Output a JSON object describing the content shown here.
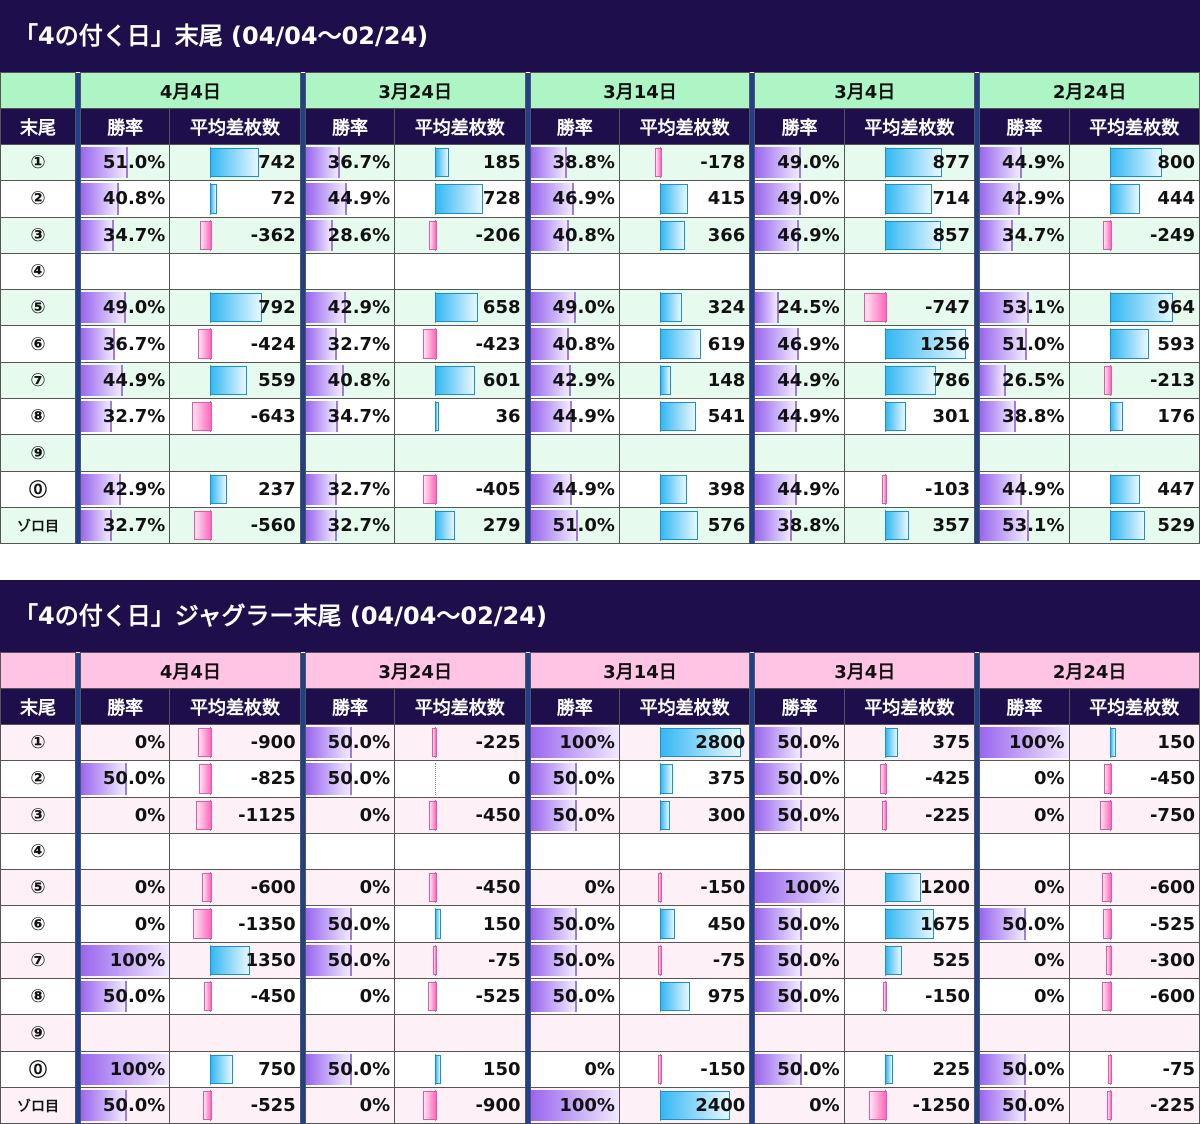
{
  "colors": {
    "title_bg": "#1e0f4c",
    "header_bg_1": "#aef5c6",
    "row_alt_1": "#e6fbee",
    "header_bg_2": "#ffc4e3",
    "row_alt_2": "#fdf0f7",
    "separator": "#1f3f8f",
    "positive_bar": "#33b8f2",
    "negative_bar": "#ff66bb",
    "rate_bar": "#9966ee"
  },
  "columns": {
    "label": "末尾",
    "rate": "勝率",
    "diff": "平均差枚数"
  },
  "sections": [
    {
      "title": "「4の付く日」末尾 (04/04〜02/24)",
      "theme": 1,
      "dates": [
        "4月4日",
        "3月24日",
        "3月14日",
        "3月4日",
        "2月24日"
      ],
      "rows": [
        {
          "label": "①",
          "cells": [
            [
              "51.0%",
              "742"
            ],
            [
              "36.7%",
              "185"
            ],
            [
              "38.8%",
              "-178"
            ],
            [
              "49.0%",
              "877"
            ],
            [
              "44.9%",
              "800"
            ]
          ]
        },
        {
          "label": "②",
          "cells": [
            [
              "40.8%",
              "72"
            ],
            [
              "44.9%",
              "728"
            ],
            [
              "46.9%",
              "415"
            ],
            [
              "49.0%",
              "714"
            ],
            [
              "42.9%",
              "444"
            ]
          ]
        },
        {
          "label": "③",
          "cells": [
            [
              "34.7%",
              "-362"
            ],
            [
              "28.6%",
              "-206"
            ],
            [
              "40.8%",
              "366"
            ],
            [
              "46.9%",
              "857"
            ],
            [
              "34.7%",
              "-249"
            ]
          ]
        },
        {
          "label": "④",
          "cells": [
            [
              "",
              ""
            ],
            [
              "",
              ""
            ],
            [
              "",
              ""
            ],
            [
              "",
              ""
            ],
            [
              "",
              ""
            ]
          ]
        },
        {
          "label": "⑤",
          "cells": [
            [
              "49.0%",
              "792"
            ],
            [
              "42.9%",
              "658"
            ],
            [
              "49.0%",
              "324"
            ],
            [
              "24.5%",
              "-747"
            ],
            [
              "53.1%",
              "964"
            ]
          ]
        },
        {
          "label": "⑥",
          "cells": [
            [
              "36.7%",
              "-424"
            ],
            [
              "32.7%",
              "-423"
            ],
            [
              "40.8%",
              "619"
            ],
            [
              "46.9%",
              "1256"
            ],
            [
              "51.0%",
              "593"
            ]
          ]
        },
        {
          "label": "⑦",
          "cells": [
            [
              "44.9%",
              "559"
            ],
            [
              "40.8%",
              "601"
            ],
            [
              "42.9%",
              "148"
            ],
            [
              "44.9%",
              "786"
            ],
            [
              "26.5%",
              "-213"
            ]
          ]
        },
        {
          "label": "⑧",
          "cells": [
            [
              "32.7%",
              "-643"
            ],
            [
              "34.7%",
              "36"
            ],
            [
              "44.9%",
              "541"
            ],
            [
              "44.9%",
              "301"
            ],
            [
              "38.8%",
              "176"
            ]
          ]
        },
        {
          "label": "⑨",
          "cells": [
            [
              "",
              ""
            ],
            [
              "",
              ""
            ],
            [
              "",
              ""
            ],
            [
              "",
              ""
            ],
            [
              "",
              ""
            ]
          ]
        },
        {
          "label": "⓪",
          "cells": [
            [
              "42.9%",
              "237"
            ],
            [
              "32.7%",
              "-405"
            ],
            [
              "44.9%",
              "398"
            ],
            [
              "44.9%",
              "-103"
            ],
            [
              "44.9%",
              "447"
            ]
          ]
        },
        {
          "label": "ゾロ目",
          "cells": [
            [
              "32.7%",
              "-560"
            ],
            [
              "32.7%",
              "279"
            ],
            [
              "51.0%",
              "576"
            ],
            [
              "38.8%",
              "357"
            ],
            [
              "53.1%",
              "529"
            ]
          ]
        }
      ]
    },
    {
      "title": "「4の付く日」ジャグラー末尾 (04/04〜02/24)",
      "theme": 2,
      "dates": [
        "4月4日",
        "3月24日",
        "3月14日",
        "3月4日",
        "2月24日"
      ],
      "rows": [
        {
          "label": "①",
          "cells": [
            [
              "0%",
              "-900"
            ],
            [
              "50.0%",
              "-225"
            ],
            [
              "100%",
              "2800"
            ],
            [
              "50.0%",
              "375"
            ],
            [
              "100%",
              "150"
            ]
          ]
        },
        {
          "label": "②",
          "cells": [
            [
              "50.0%",
              "-825"
            ],
            [
              "50.0%",
              "0"
            ],
            [
              "50.0%",
              "375"
            ],
            [
              "50.0%",
              "-425"
            ],
            [
              "0%",
              "-450"
            ]
          ]
        },
        {
          "label": "③",
          "cells": [
            [
              "0%",
              "-1125"
            ],
            [
              "0%",
              "-450"
            ],
            [
              "50.0%",
              "300"
            ],
            [
              "50.0%",
              "-225"
            ],
            [
              "0%",
              "-750"
            ]
          ]
        },
        {
          "label": "④",
          "cells": [
            [
              "",
              ""
            ],
            [
              "",
              ""
            ],
            [
              "",
              ""
            ],
            [
              "",
              ""
            ],
            [
              "",
              ""
            ]
          ]
        },
        {
          "label": "⑤",
          "cells": [
            [
              "0%",
              "-600"
            ],
            [
              "0%",
              "-450"
            ],
            [
              "0%",
              "-150"
            ],
            [
              "100%",
              "1200"
            ],
            [
              "0%",
              "-600"
            ]
          ]
        },
        {
          "label": "⑥",
          "cells": [
            [
              "0%",
              "-1350"
            ],
            [
              "50.0%",
              "150"
            ],
            [
              "50.0%",
              "450"
            ],
            [
              "50.0%",
              "1675"
            ],
            [
              "50.0%",
              "-525"
            ]
          ]
        },
        {
          "label": "⑦",
          "cells": [
            [
              "100%",
              "1350"
            ],
            [
              "50.0%",
              "-75"
            ],
            [
              "50.0%",
              "-75"
            ],
            [
              "50.0%",
              "525"
            ],
            [
              "0%",
              "-300"
            ]
          ]
        },
        {
          "label": "⑧",
          "cells": [
            [
              "50.0%",
              "-450"
            ],
            [
              "0%",
              "-525"
            ],
            [
              "50.0%",
              "975"
            ],
            [
              "50.0%",
              "-150"
            ],
            [
              "0%",
              "-600"
            ]
          ]
        },
        {
          "label": "⑨",
          "cells": [
            [
              "",
              ""
            ],
            [
              "",
              ""
            ],
            [
              "",
              ""
            ],
            [
              "",
              ""
            ],
            [
              "",
              ""
            ]
          ]
        },
        {
          "label": "⓪",
          "cells": [
            [
              "100%",
              "750"
            ],
            [
              "50.0%",
              "150"
            ],
            [
              "0%",
              "-150"
            ],
            [
              "50.0%",
              "225"
            ],
            [
              "50.0%",
              "-75"
            ]
          ]
        },
        {
          "label": "ゾロ目",
          "cells": [
            [
              "50.0%",
              "-525"
            ],
            [
              "0%",
              "-900"
            ],
            [
              "100%",
              "2400"
            ],
            [
              "0%",
              "-1250"
            ],
            [
              "50.0%",
              "-225"
            ]
          ]
        }
      ]
    }
  ]
}
